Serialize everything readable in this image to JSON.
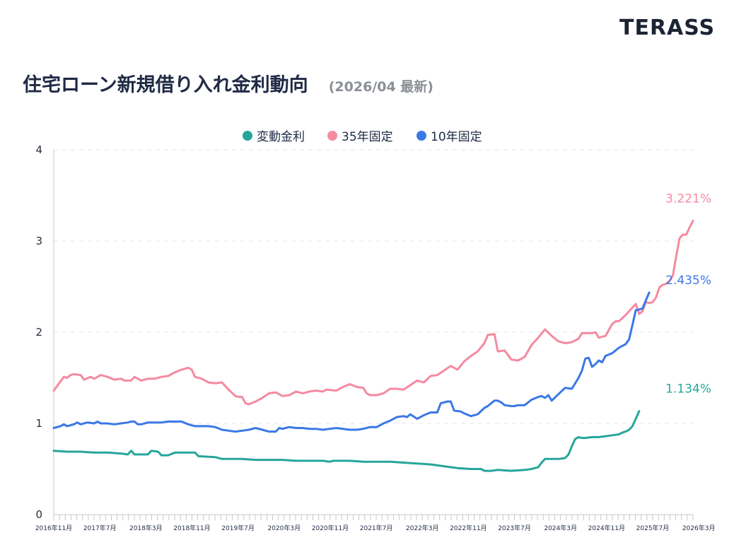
{
  "brand": {
    "logo": "TERASS"
  },
  "header": {
    "title": "住宅ローン新規借り入れ金利動向",
    "subtitle": "(2026/04 最新)"
  },
  "colors": {
    "variable": "#26a69a",
    "fixed35": "#f48aa0",
    "fixed10": "#3b78e7",
    "grid": "#e6e6e6",
    "axis": "#c8c8c8"
  },
  "chart_data": {
    "type": "line",
    "yticks": [
      "0",
      "1",
      "2",
      "3",
      "4"
    ],
    "ylim": [
      0,
      4
    ],
    "grid": true,
    "legend_position": "top-center",
    "x_tick_labels": [
      "2016年11月",
      "2017年7月",
      "2018年3月",
      "2018年11月",
      "2019年7月",
      "2020年3月",
      "2020年11月",
      "2021年7月",
      "2022年3月",
      "2022年11月",
      "2023年7月",
      "2024年3月",
      "2024年11月",
      "2025年7月",
      "2026年3月"
    ],
    "x_range": [
      "2016年11月",
      "2026年3月"
    ],
    "series": [
      {
        "name": "変動金利",
        "color": "#26a69a",
        "end_label": "1.134%",
        "points": [
          [
            0,
            0.7
          ],
          [
            4,
            0.69
          ],
          [
            8,
            0.69
          ],
          [
            12,
            0.68
          ],
          [
            16,
            0.68
          ],
          [
            20,
            0.67
          ],
          [
            22,
            0.66
          ],
          [
            23,
            0.7
          ],
          [
            24,
            0.66
          ],
          [
            28,
            0.66
          ],
          [
            29,
            0.7
          ],
          [
            31,
            0.69
          ],
          [
            32,
            0.65
          ],
          [
            34,
            0.65
          ],
          [
            36,
            0.68
          ],
          [
            40,
            0.68
          ],
          [
            42,
            0.68
          ],
          [
            43,
            0.64
          ],
          [
            48,
            0.63
          ],
          [
            50,
            0.61
          ],
          [
            56,
            0.61
          ],
          [
            60,
            0.6
          ],
          [
            64,
            0.6
          ],
          [
            68,
            0.6
          ],
          [
            72,
            0.59
          ],
          [
            76,
            0.59
          ],
          [
            80,
            0.59
          ],
          [
            82,
            0.58
          ],
          [
            83,
            0.59
          ],
          [
            88,
            0.59
          ],
          [
            92,
            0.58
          ],
          [
            96,
            0.58
          ],
          [
            100,
            0.58
          ],
          [
            104,
            0.57
          ],
          [
            108,
            0.56
          ],
          [
            112,
            0.55
          ],
          [
            116,
            0.53
          ],
          [
            120,
            0.51
          ],
          [
            124,
            0.5
          ],
          [
            127,
            0.5
          ],
          [
            128,
            0.48
          ],
          [
            130,
            0.48
          ],
          [
            132,
            0.49
          ],
          [
            136,
            0.48
          ],
          [
            140,
            0.49
          ],
          [
            142,
            0.5
          ],
          [
            144,
            0.52
          ],
          [
            145,
            0.57
          ],
          [
            146,
            0.61
          ],
          [
            148,
            0.61
          ],
          [
            150,
            0.61
          ],
          [
            152,
            0.62
          ],
          [
            153,
            0.66
          ],
          [
            154,
            0.75
          ],
          [
            155,
            0.83
          ],
          [
            156,
            0.85
          ],
          [
            157,
            0.84
          ],
          [
            158,
            0.84
          ],
          [
            160,
            0.85
          ],
          [
            162,
            0.85
          ],
          [
            164,
            0.86
          ],
          [
            166,
            0.87
          ],
          [
            168,
            0.88
          ],
          [
            169,
            0.9
          ],
          [
            170,
            0.91
          ],
          [
            171,
            0.93
          ],
          [
            172,
            0.97
          ],
          [
            173,
            1.05
          ],
          [
            174,
            1.134
          ]
        ]
      },
      {
        "name": "35年固定",
        "color": "#f48aa0",
        "end_label": "3.221%",
        "points": [
          [
            0,
            1.36
          ],
          [
            2,
            1.46
          ],
          [
            3,
            1.51
          ],
          [
            4,
            1.5
          ],
          [
            5,
            1.53
          ],
          [
            6,
            1.54
          ],
          [
            8,
            1.53
          ],
          [
            9,
            1.48
          ],
          [
            11,
            1.51
          ],
          [
            12,
            1.49
          ],
          [
            14,
            1.53
          ],
          [
            16,
            1.51
          ],
          [
            18,
            1.48
          ],
          [
            20,
            1.49
          ],
          [
            21,
            1.47
          ],
          [
            23,
            1.47
          ],
          [
            24,
            1.51
          ],
          [
            26,
            1.47
          ],
          [
            28,
            1.49
          ],
          [
            30,
            1.49
          ],
          [
            32,
            1.51
          ],
          [
            34,
            1.52
          ],
          [
            36,
            1.56
          ],
          [
            38,
            1.59
          ],
          [
            40,
            1.61
          ],
          [
            41,
            1.59
          ],
          [
            42,
            1.51
          ],
          [
            44,
            1.49
          ],
          [
            46,
            1.45
          ],
          [
            48,
            1.44
          ],
          [
            50,
            1.45
          ],
          [
            52,
            1.37
          ],
          [
            54,
            1.3
          ],
          [
            55,
            1.29
          ],
          [
            56,
            1.29
          ],
          [
            57,
            1.22
          ],
          [
            58,
            1.21
          ],
          [
            60,
            1.24
          ],
          [
            62,
            1.28
          ],
          [
            64,
            1.33
          ],
          [
            66,
            1.34
          ],
          [
            68,
            1.3
          ],
          [
            70,
            1.31
          ],
          [
            72,
            1.35
          ],
          [
            74,
            1.33
          ],
          [
            76,
            1.35
          ],
          [
            78,
            1.36
          ],
          [
            80,
            1.35
          ],
          [
            81,
            1.37
          ],
          [
            84,
            1.36
          ],
          [
            86,
            1.4
          ],
          [
            88,
            1.43
          ],
          [
            90,
            1.4
          ],
          [
            92,
            1.39
          ],
          [
            93,
            1.33
          ],
          [
            94,
            1.31
          ],
          [
            96,
            1.31
          ],
          [
            98,
            1.33
          ],
          [
            100,
            1.38
          ],
          [
            102,
            1.38
          ],
          [
            104,
            1.37
          ],
          [
            106,
            1.42
          ],
          [
            108,
            1.47
          ],
          [
            110,
            1.45
          ],
          [
            112,
            1.52
          ],
          [
            114,
            1.53
          ],
          [
            116,
            1.58
          ],
          [
            118,
            1.63
          ],
          [
            120,
            1.59
          ],
          [
            122,
            1.68
          ],
          [
            124,
            1.74
          ],
          [
            126,
            1.79
          ],
          [
            128,
            1.88
          ],
          [
            129,
            1.97
          ],
          [
            131,
            1.98
          ],
          [
            132,
            1.79
          ],
          [
            134,
            1.8
          ],
          [
            136,
            1.7
          ],
          [
            138,
            1.69
          ],
          [
            140,
            1.73
          ],
          [
            142,
            1.86
          ],
          [
            144,
            1.94
          ],
          [
            146,
            2.03
          ],
          [
            148,
            1.96
          ],
          [
            150,
            1.9
          ],
          [
            152,
            1.88
          ],
          [
            154,
            1.89
          ],
          [
            156,
            1.93
          ],
          [
            157,
            1.99
          ],
          [
            158,
            1.99
          ],
          [
            160,
            1.99
          ],
          [
            161,
            2.0
          ],
          [
            162,
            1.94
          ],
          [
            164,
            1.96
          ],
          [
            166,
            2.09
          ],
          [
            167,
            2.12
          ],
          [
            168,
            2.12
          ],
          [
            170,
            2.19
          ],
          [
            172,
            2.27
          ],
          [
            173,
            2.31
          ],
          [
            174,
            2.2
          ],
          [
            175,
            2.23
          ],
          [
            176,
            2.33
          ],
          [
            177,
            2.32
          ],
          [
            178,
            2.33
          ],
          [
            179,
            2.38
          ],
          [
            180,
            2.49
          ],
          [
            181,
            2.52
          ],
          [
            182,
            2.53
          ],
          [
            183,
            2.56
          ],
          [
            184,
            2.62
          ],
          [
            185,
            2.83
          ],
          [
            186,
            3.03
          ],
          [
            187,
            3.07
          ],
          [
            188,
            3.07
          ],
          [
            189,
            3.15
          ],
          [
            190,
            3.221
          ]
        ]
      },
      {
        "name": "10年固定",
        "color": "#3b78e7",
        "end_label": "2.435%",
        "points": [
          [
            0,
            0.95
          ],
          [
            2,
            0.97
          ],
          [
            3,
            0.99
          ],
          [
            4,
            0.97
          ],
          [
            5,
            0.98
          ],
          [
            6,
            0.99
          ],
          [
            7,
            1.01
          ],
          [
            8,
            0.99
          ],
          [
            10,
            1.01
          ],
          [
            12,
            1.0
          ],
          [
            13,
            1.02
          ],
          [
            14,
            1.0
          ],
          [
            16,
            1.0
          ],
          [
            18,
            0.99
          ],
          [
            20,
            1.0
          ],
          [
            22,
            1.01
          ],
          [
            23,
            1.02
          ],
          [
            24,
            1.02
          ],
          [
            25,
            0.99
          ],
          [
            26,
            0.99
          ],
          [
            28,
            1.01
          ],
          [
            30,
            1.01
          ],
          [
            32,
            1.01
          ],
          [
            34,
            1.02
          ],
          [
            36,
            1.02
          ],
          [
            38,
            1.02
          ],
          [
            40,
            0.99
          ],
          [
            42,
            0.97
          ],
          [
            44,
            0.97
          ],
          [
            46,
            0.97
          ],
          [
            48,
            0.96
          ],
          [
            50,
            0.93
          ],
          [
            52,
            0.92
          ],
          [
            54,
            0.91
          ],
          [
            56,
            0.92
          ],
          [
            58,
            0.93
          ],
          [
            60,
            0.95
          ],
          [
            62,
            0.93
          ],
          [
            64,
            0.91
          ],
          [
            66,
            0.91
          ],
          [
            67,
            0.95
          ],
          [
            68,
            0.94
          ],
          [
            70,
            0.96
          ],
          [
            72,
            0.95
          ],
          [
            74,
            0.95
          ],
          [
            76,
            0.94
          ],
          [
            78,
            0.94
          ],
          [
            80,
            0.93
          ],
          [
            82,
            0.94
          ],
          [
            84,
            0.95
          ],
          [
            86,
            0.94
          ],
          [
            88,
            0.93
          ],
          [
            90,
            0.93
          ],
          [
            92,
            0.94
          ],
          [
            94,
            0.96
          ],
          [
            96,
            0.96
          ],
          [
            98,
            1.0
          ],
          [
            100,
            1.03
          ],
          [
            102,
            1.07
          ],
          [
            104,
            1.08
          ],
          [
            105,
            1.07
          ],
          [
            106,
            1.1
          ],
          [
            108,
            1.05
          ],
          [
            110,
            1.09
          ],
          [
            112,
            1.12
          ],
          [
            114,
            1.12
          ],
          [
            115,
            1.22
          ],
          [
            117,
            1.24
          ],
          [
            118,
            1.24
          ],
          [
            119,
            1.14
          ],
          [
            121,
            1.13
          ],
          [
            122,
            1.11
          ],
          [
            124,
            1.08
          ],
          [
            126,
            1.1
          ],
          [
            128,
            1.17
          ],
          [
            129,
            1.19
          ],
          [
            130,
            1.22
          ],
          [
            131,
            1.25
          ],
          [
            132,
            1.25
          ],
          [
            133,
            1.23
          ],
          [
            134,
            1.2
          ],
          [
            136,
            1.19
          ],
          [
            137,
            1.19
          ],
          [
            138,
            1.2
          ],
          [
            140,
            1.2
          ],
          [
            142,
            1.26
          ],
          [
            144,
            1.29
          ],
          [
            145,
            1.3
          ],
          [
            146,
            1.28
          ],
          [
            147,
            1.31
          ],
          [
            148,
            1.25
          ],
          [
            150,
            1.32
          ],
          [
            152,
            1.39
          ],
          [
            154,
            1.38
          ],
          [
            156,
            1.5
          ],
          [
            157,
            1.58
          ],
          [
            158,
            1.71
          ],
          [
            159,
            1.72
          ],
          [
            160,
            1.62
          ],
          [
            161,
            1.65
          ],
          [
            162,
            1.69
          ],
          [
            163,
            1.67
          ],
          [
            164,
            1.74
          ],
          [
            166,
            1.77
          ],
          [
            168,
            1.83
          ],
          [
            169,
            1.85
          ],
          [
            170,
            1.87
          ],
          [
            171,
            1.92
          ],
          [
            172,
            2.08
          ],
          [
            173,
            2.24
          ],
          [
            174,
            2.25
          ],
          [
            175,
            2.26
          ],
          [
            176,
            2.35
          ],
          [
            177,
            2.435
          ]
        ]
      }
    ]
  }
}
